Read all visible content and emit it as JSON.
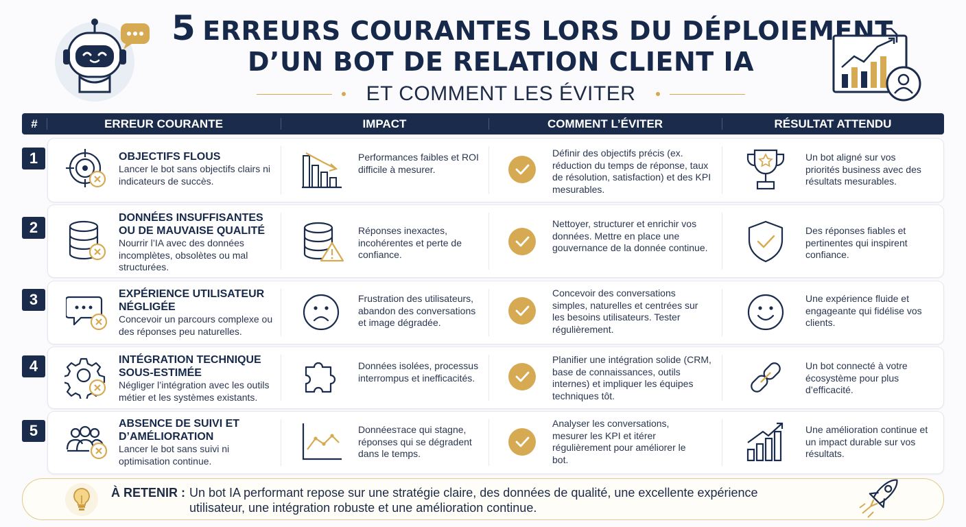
{
  "header": {
    "title_number": "5",
    "title_line1": "ERREURS COURANTES LORS DU DÉPLOIEMENT",
    "title_line2": "D’UN BOT DE RELATION CLIENT IA",
    "subtitle": "ET COMMENT LES ÉVITER"
  },
  "columns": [
    "#",
    "ERREUR COURANTE",
    "IMPACT",
    "COMMENT L’ÉVITER",
    "RÉSULTAT ATTENDU"
  ],
  "rows": [
    {
      "num": "1",
      "error_icon": "target-icon",
      "error_title": "OBJECTIFS FLOUS",
      "error_desc": "Lancer le bot sans objectifs clairs ni indicateurs de succès.",
      "impact_icon": "declining-bar-chart-icon",
      "impact": "Performances faibles et ROI difficile à mesurer.",
      "avoid": "Définir des objectifs précis (ex. réduction du temps de réponse, taux de résolution, satisfaction) et des KPI mesurables.",
      "result_icon": "trophy-icon",
      "result": "Un bot aligné sur vos priorités business avec des résultats mesurables."
    },
    {
      "num": "2",
      "error_icon": "database-icon",
      "error_title": "DONNÉES INSUFFISANTES OU DE MAUVAISE QUALITÉ",
      "error_desc": "Nourrir l’IA avec des données incomplètes, obsolètes ou mal structurées.",
      "impact_icon": "database-warning-icon",
      "impact": "Réponses inexactes, incohérentes et perte de confiance.",
      "avoid": "Nettoyer, structurer et enrichir vos données. Mettre en place une gouvernance de la donnée continue.",
      "result_icon": "shield-check-icon",
      "result": "Des réponses fiables et pertinentes qui inspirent confiance."
    },
    {
      "num": "3",
      "error_icon": "chat-bubble-icon",
      "error_title": "EXPÉRIENCE UTILISATEUR NÉGLIGÉE",
      "error_desc": "Concevoir un parcours complexe ou des réponses peu naturelles.",
      "impact_icon": "sad-face-icon",
      "impact": "Frustration des utilisateurs, abandon des conversations et image dégradée.",
      "avoid": "Concevoir des conversations simples, naturelles et centrées sur les besoins utilisateurs. Tester régulièrement.",
      "result_icon": "happy-face-icon",
      "result": "Une expérience fluide et engageante qui fidélise vos clients."
    },
    {
      "num": "4",
      "error_icon": "gear-icon",
      "error_title": "INTÉGRATION TECHNIQUE SOUS-ESTIMÉE",
      "error_desc": "Négliger l’intégration avec les outils métier et les systèmes existants.",
      "impact_icon": "puzzle-piece-icon",
      "impact": "Données isolées, processus interrompus et inefficacités.",
      "avoid": "Planifier une intégration solide (CRM, base de connaissances, outils internes) et impliquer les équipes techniques tôt.",
      "result_icon": "chain-link-icon",
      "result": "Un bot connecté à votre écosystème pour plus d’efficacité."
    },
    {
      "num": "5",
      "error_icon": "team-icon",
      "error_title": "ABSENCE DE SUIVI ET D’AMÉLIORATION",
      "error_desc": "Lancer le bot sans suivi ni optimisation continue.",
      "impact_icon": "line-chart-icon",
      "impact": "Donnéesтace qui stagne, réponses qui se dégradent dans le temps.",
      "avoid": "Analyser les conversations, mesurer les KPI et itérer régulièrement pour améliorer le bot.",
      "result_icon": "growth-chart-icon",
      "result": "Une amélioration continue et un impact durable sur vos résultats."
    }
  ],
  "footer": {
    "label": "À RETENIR :",
    "text": "Un bot IA performant repose sur une stratégie claire, des données de qualité, une excellente expérience utilisateur, une intégration robuste et une amélioration continue."
  },
  "colors": {
    "navy": "#1a2b4c",
    "gold": "#d6aa52",
    "background": "#fbfbfd"
  }
}
